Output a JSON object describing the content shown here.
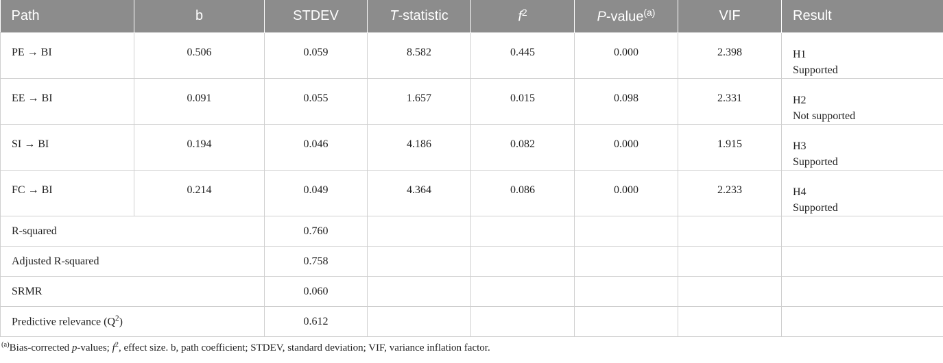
{
  "table": {
    "header": [
      [
        {
          "t": "Path",
          "s": ""
        }
      ],
      [
        {
          "t": "b",
          "s": ""
        }
      ],
      [
        {
          "t": "STDEV",
          "s": ""
        }
      ],
      [
        {
          "t": "T",
          "s": "i"
        },
        {
          "t": "-statistic",
          "s": ""
        }
      ],
      [
        {
          "t": "f",
          "s": "i"
        },
        {
          "t": "2",
          "s": "sup"
        }
      ],
      [
        {
          "t": "P",
          "s": "i"
        },
        {
          "t": "-value",
          "s": ""
        },
        {
          "t": "(a)",
          "s": "sup"
        }
      ],
      [
        {
          "t": "VIF",
          "s": ""
        }
      ],
      [
        {
          "t": "Result",
          "s": ""
        }
      ]
    ],
    "rows": [
      {
        "path": "PE →  BI",
        "cells": [
          "0.506",
          "0.059",
          "8.582",
          "0.445",
          "0.000",
          "2.398"
        ],
        "result": [
          "H1",
          "Supported"
        ]
      },
      {
        "path": "EE →  BI",
        "cells": [
          "0.091",
          "0.055",
          "1.657",
          "0.015",
          "0.098",
          "2.331"
        ],
        "result": [
          "H2",
          "Not supported"
        ]
      },
      {
        "path": "SI →  BI",
        "cells": [
          "0.194",
          "0.046",
          "4.186",
          "0.082",
          "0.000",
          "1.915"
        ],
        "result": [
          "H3",
          "Supported"
        ]
      },
      {
        "path": "FC →  BI",
        "cells": [
          "0.214",
          "0.049",
          "4.364",
          "0.086",
          "0.000",
          "2.233"
        ],
        "result": [
          "H4",
          "Supported"
        ]
      }
    ],
    "summary": [
      {
        "label": [
          {
            "t": "R-squared",
            "s": ""
          }
        ],
        "value": "0.760"
      },
      {
        "label": [
          {
            "t": "Adjusted R-squared",
            "s": ""
          }
        ],
        "value": "0.758"
      },
      {
        "label": [
          {
            "t": "SRMR",
            "s": ""
          }
        ],
        "value": "0.060"
      },
      {
        "label": [
          {
            "t": "Predictive relevance (Q",
            "s": ""
          },
          {
            "t": "2",
            "s": "sup"
          },
          {
            "t": ")",
            "s": ""
          }
        ],
        "value": "0.612"
      }
    ],
    "footnote": [
      {
        "t": "(a)",
        "s": "sup"
      },
      {
        "t": "Bias-corrected ",
        "s": ""
      },
      {
        "t": "p",
        "s": "i"
      },
      {
        "t": "-values; ",
        "s": ""
      },
      {
        "t": "f",
        "s": "i"
      },
      {
        "t": "2",
        "s": "sup"
      },
      {
        "t": ", effect size. b, path coefficient; STDEV, standard deviation; VIF, variance inflation factor.",
        "s": ""
      }
    ]
  }
}
